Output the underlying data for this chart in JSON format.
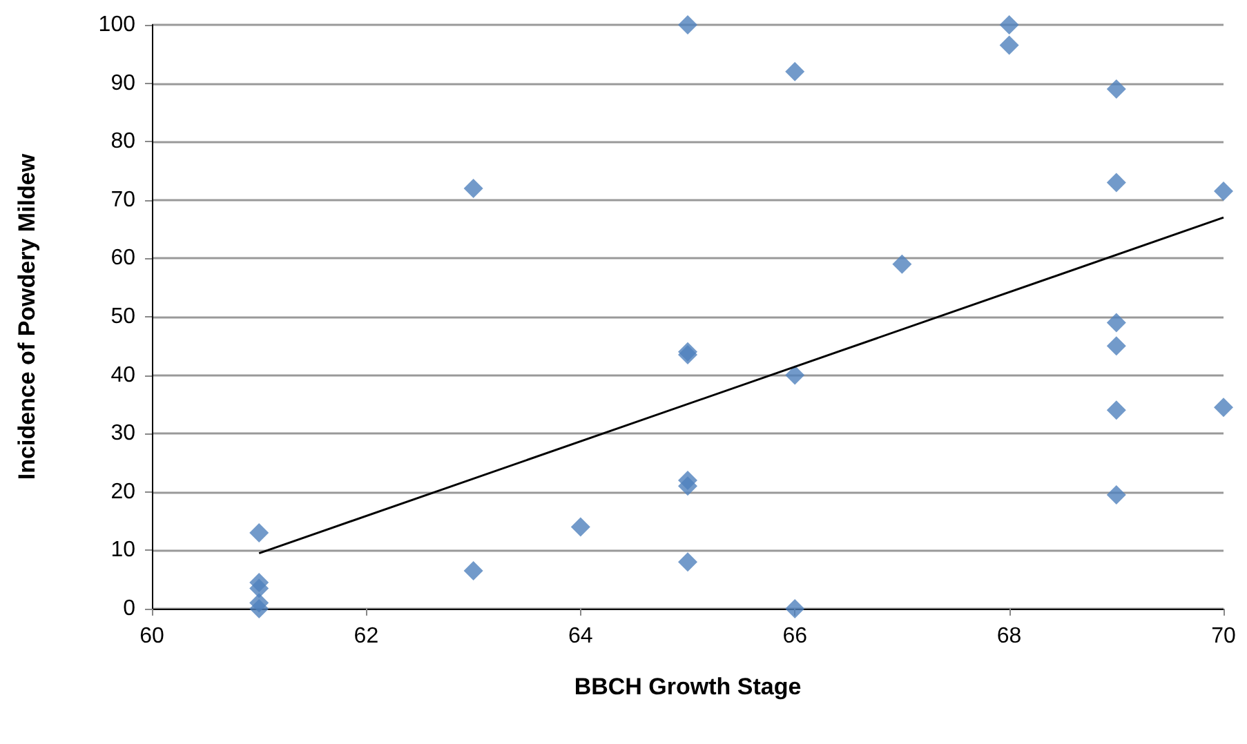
{
  "chart_data": {
    "type": "scatter",
    "xlabel": "BBCH Growth Stage",
    "ylabel": "Incidence of Powdery Mildew",
    "xlim": [
      60,
      70
    ],
    "xticks": [
      60,
      62,
      64,
      66,
      68,
      70
    ],
    "ylim": [
      0,
      100
    ],
    "yticks": [
      0,
      10,
      20,
      30,
      40,
      50,
      60,
      70,
      80,
      90,
      100
    ],
    "grid": "y",
    "marker": "diamond",
    "series": [
      {
        "color": "#4f81bd",
        "x": [
          61,
          61,
          61,
          61,
          61,
          63,
          63,
          64,
          65,
          65,
          65,
          65,
          65,
          65,
          66,
          66,
          66,
          67,
          68,
          68,
          69,
          69,
          69,
          69,
          69,
          69,
          70,
          70
        ],
        "values": [
          13,
          4.5,
          3.5,
          1,
          0,
          72,
          6.5,
          14,
          100,
          44,
          43.5,
          22,
          21,
          8,
          92,
          40,
          0,
          59,
          100,
          96.5,
          89,
          73,
          49,
          45,
          34,
          19.5,
          71.5,
          34.5
        ]
      },
      {
        "type": "line",
        "color": "#000000",
        "marker": "none",
        "x": [
          61,
          70
        ],
        "values": [
          9.5,
          67
        ]
      }
    ]
  }
}
